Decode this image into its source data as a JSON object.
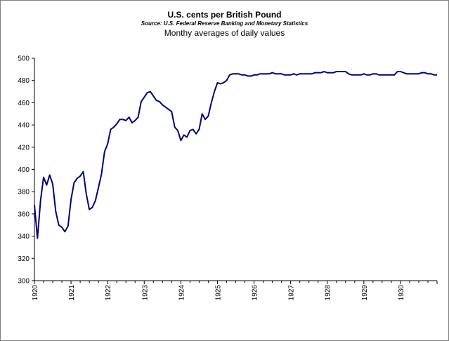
{
  "chart_data": {
    "type": "line",
    "title": "U.S. cents per British Pound",
    "subtitle": "Source: U.S. Federal Reserve Banking and Monetary Statistics",
    "note": "Monthy averages of daily values",
    "xlabel": "",
    "ylabel": "",
    "ylim": [
      300,
      500
    ],
    "yticks": [
      300,
      320,
      340,
      360,
      380,
      400,
      420,
      440,
      460,
      480,
      500
    ],
    "xlim": [
      1920,
      1931
    ],
    "xticks": [
      "1920",
      "1921",
      "1922",
      "1923",
      "1924",
      "1925",
      "1926",
      "1927",
      "1928",
      "1929",
      "1930"
    ],
    "grid": false,
    "legend": "none",
    "series_color": "#000080",
    "values": [
      368,
      338,
      372,
      393,
      386,
      395,
      387,
      362,
      350,
      348,
      344,
      349,
      373,
      388,
      392,
      394,
      398,
      378,
      364,
      366,
      372,
      384,
      396,
      416,
      423,
      436,
      438,
      441,
      445,
      445,
      444,
      447,
      442,
      444,
      447,
      461,
      465,
      469,
      470,
      466,
      462,
      461,
      458,
      456,
      454,
      452,
      438,
      435,
      426,
      431,
      429,
      435,
      436,
      432,
      436,
      450,
      445,
      448,
      460,
      470,
      478,
      477,
      478,
      480,
      485,
      486,
      486,
      486,
      485,
      485,
      484,
      484,
      485,
      485,
      486,
      486,
      486,
      486,
      487,
      486,
      486,
      486,
      485,
      485,
      485,
      486,
      485,
      486,
      486,
      486,
      486,
      486,
      487,
      487,
      487,
      488,
      487,
      487,
      487,
      488,
      488,
      488,
      488,
      486,
      485,
      485,
      485,
      485,
      486,
      485,
      485,
      486,
      486,
      485,
      485,
      485,
      485,
      485,
      485,
      488,
      488,
      487,
      486,
      486,
      486,
      486,
      486,
      487,
      487,
      486,
      486,
      485,
      485
    ]
  }
}
